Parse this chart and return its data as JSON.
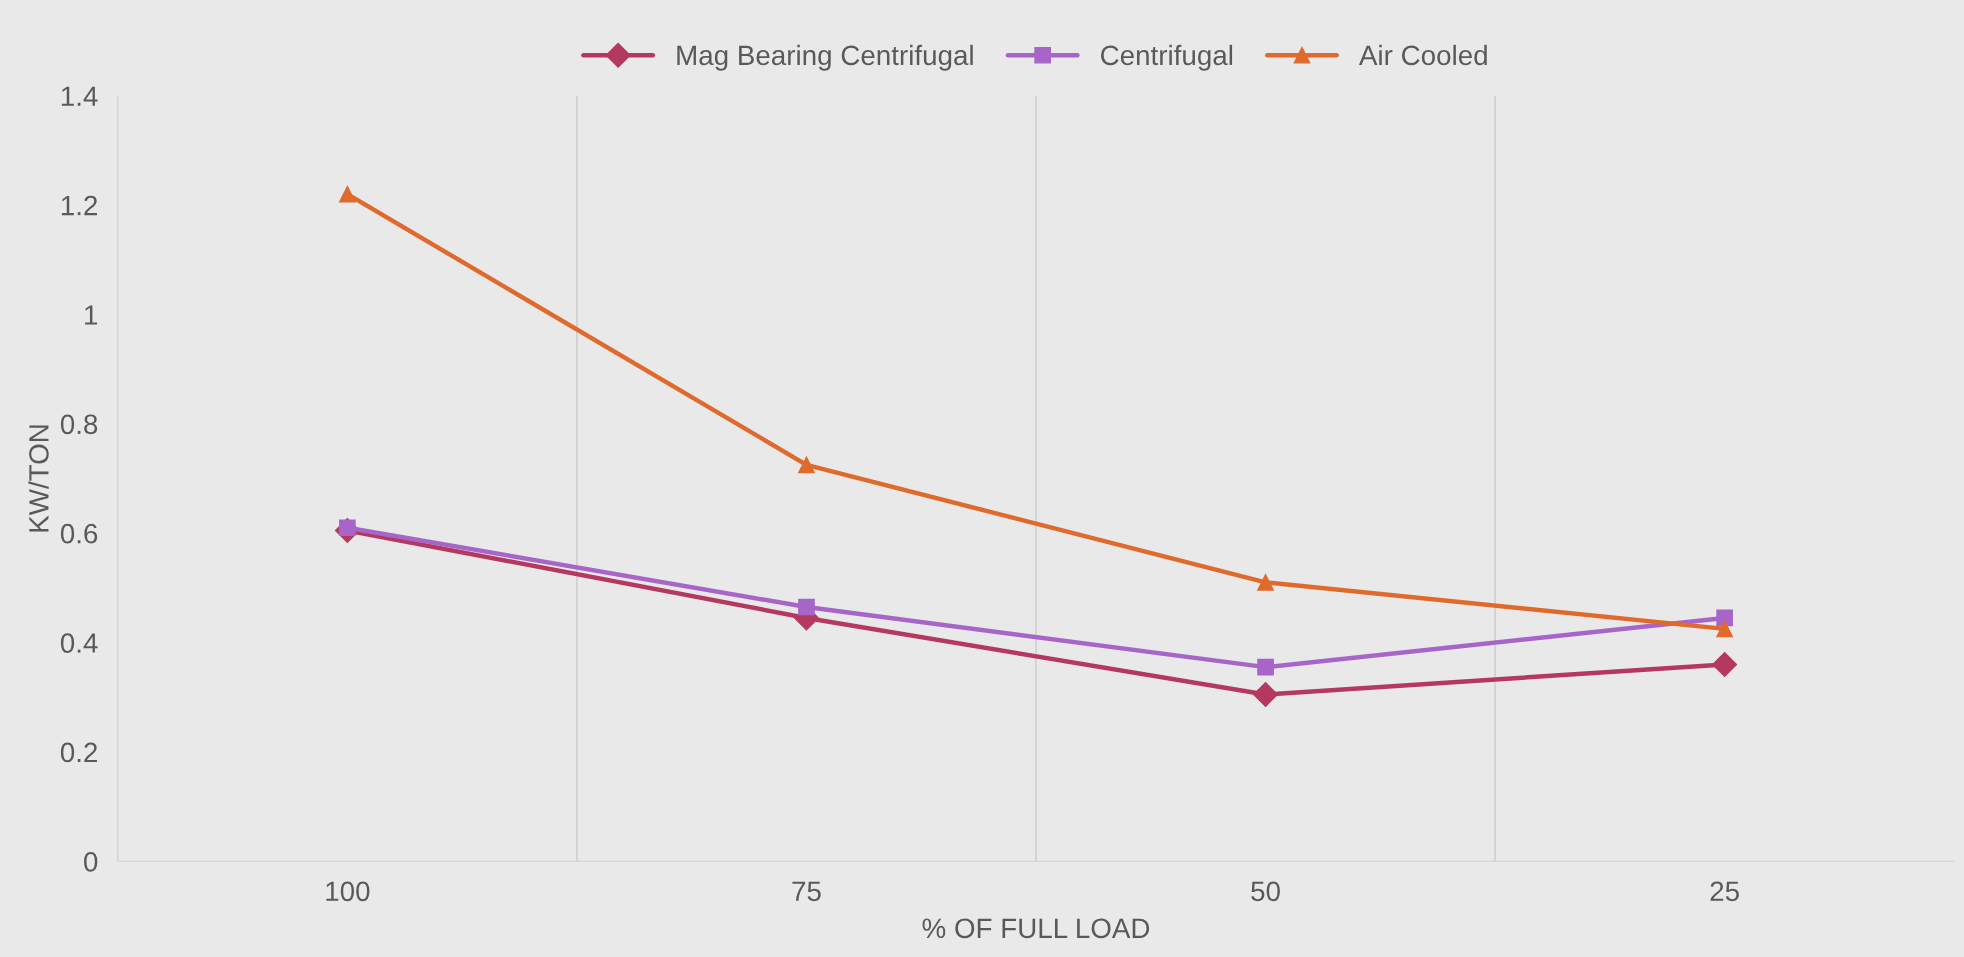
{
  "chart_data": {
    "type": "line",
    "xlabel": "% OF FULL LOAD",
    "ylabel": "KW/TON",
    "categories": [
      "100",
      "75",
      "50",
      "25"
    ],
    "series": [
      {
        "name": "Mag Bearing Centrifugal",
        "color": "#b5395e",
        "marker": "diamond",
        "values": [
          0.605,
          0.445,
          0.305,
          0.36
        ]
      },
      {
        "name": "Centrifugal",
        "color": "#a865c9",
        "marker": "square",
        "values": [
          0.61,
          0.465,
          0.355,
          0.445
        ]
      },
      {
        "name": "Air Cooled",
        "color": "#e06a2c",
        "marker": "triangle",
        "values": [
          1.22,
          0.725,
          0.51,
          0.425
        ]
      }
    ],
    "ylim": [
      0,
      1.4
    ],
    "yticks": [
      0,
      0.2,
      0.4,
      0.6,
      0.8,
      1,
      1.2,
      1.4
    ],
    "grid": "x",
    "legend": "top",
    "line_style": "solid"
  }
}
